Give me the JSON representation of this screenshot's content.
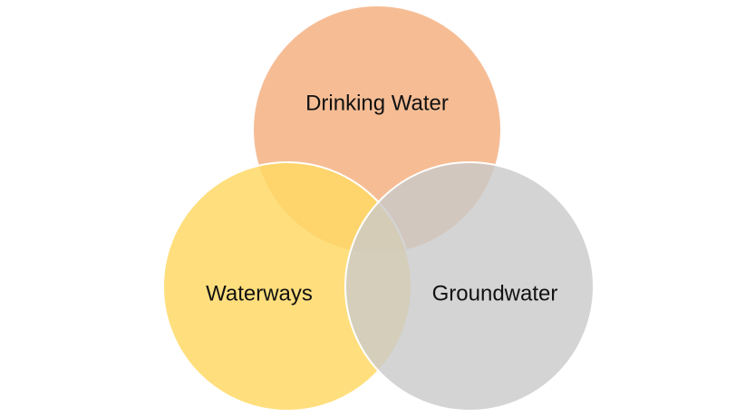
{
  "diagram": {
    "type": "venn",
    "sets": [
      {
        "id": "drinking",
        "label": "Drinking Water",
        "color": "#f4b183",
        "opacity": 0.85
      },
      {
        "id": "waterways",
        "label": "Waterways",
        "color": "#ffd966",
        "opacity": 0.85
      },
      {
        "id": "groundwater",
        "label": "Groundwater",
        "color": "#c9c9c9",
        "opacity": 0.8
      }
    ]
  }
}
